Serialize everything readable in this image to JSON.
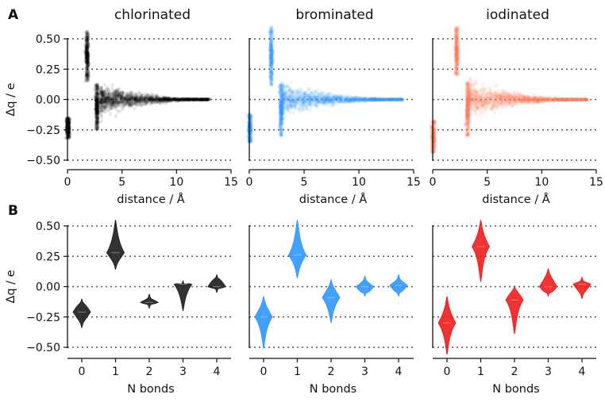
{
  "panel_labels": [
    "A",
    "B"
  ],
  "chart_data": [
    {
      "type": "scatter",
      "panel": "A",
      "title": "chlorinated",
      "xlabel": "distance / Å",
      "ylabel": "Δq / e",
      "xlim": [
        0,
        15
      ],
      "ylim": [
        -0.5,
        0.6
      ],
      "xticks": [
        "0",
        "5",
        "10",
        "15"
      ],
      "yticks": [
        "0.50",
        "0.25",
        "0.00",
        "−0.25",
        "−0.50"
      ],
      "color": "#000000",
      "clusters": [
        {
          "x": 0.05,
          "y_range": [
            -0.32,
            -0.15
          ]
        },
        {
          "x": 1.8,
          "y_range": [
            0.15,
            0.56
          ]
        },
        {
          "x": 2.7,
          "y_range": [
            -0.25,
            0.13
          ]
        },
        {
          "x_range": [
            3,
            13
          ],
          "envelope": [
            0.12,
            0.0
          ]
        }
      ]
    },
    {
      "type": "scatter",
      "panel": "A",
      "title": "brominated",
      "xlabel": "distance / Å",
      "ylabel": "",
      "xlim": [
        0,
        15
      ],
      "ylim": [
        -0.5,
        0.6
      ],
      "xticks": [
        "0",
        "5",
        "10",
        "15"
      ],
      "color": "#3399ff",
      "clusters": [
        {
          "x": 0.05,
          "y_range": [
            -0.35,
            -0.12
          ]
        },
        {
          "x": 2.0,
          "y_range": [
            0.12,
            0.6
          ]
        },
        {
          "x": 2.9,
          "y_range": [
            -0.3,
            0.13
          ]
        },
        {
          "x_range": [
            3,
            14
          ],
          "envelope": [
            0.13,
            0.0
          ]
        }
      ]
    },
    {
      "type": "scatter",
      "panel": "A",
      "title": "iodinated",
      "xlabel": "distance / Å",
      "ylabel": "",
      "xlim": [
        0,
        15
      ],
      "ylim": [
        -0.5,
        0.6
      ],
      "xticks": [
        "0",
        "5",
        "10",
        "15"
      ],
      "color": "#ff7a5c",
      "clusters": [
        {
          "x": 0.05,
          "y_range": [
            -0.44,
            -0.17
          ]
        },
        {
          "x": 2.2,
          "y_range": [
            0.2,
            0.6
          ]
        },
        {
          "x": 3.2,
          "y_range": [
            -0.3,
            0.14
          ]
        },
        {
          "x_range": [
            3.3,
            14.2
          ],
          "envelope": [
            0.14,
            0.0
          ]
        }
      ]
    },
    {
      "type": "violin",
      "panel": "B",
      "title": "",
      "xlabel": "N bonds",
      "ylabel": "Δq / e",
      "categories": [
        "0",
        "1",
        "2",
        "3",
        "4"
      ],
      "ylim": [
        -0.5,
        0.55
      ],
      "yticks": [
        "0.50",
        "0.25",
        "0.00",
        "−0.25",
        "−0.50"
      ],
      "color": "#222222",
      "series": [
        {
          "values": [
            -0.21,
            0.28,
            -0.13,
            0.02,
            0.0
          ],
          "min": [
            -0.34,
            0.14,
            -0.18,
            -0.2,
            -0.05
          ],
          "max": [
            -0.1,
            0.55,
            -0.06,
            0.05,
            0.1
          ]
        }
      ]
    },
    {
      "type": "violin",
      "panel": "B",
      "title": "",
      "xlabel": "N bonds",
      "ylabel": "",
      "categories": [
        "0",
        "1",
        "2",
        "3",
        "4"
      ],
      "ylim": [
        -0.5,
        0.55
      ],
      "color": "#3399ff",
      "series": [
        {
          "values": [
            -0.25,
            0.26,
            -0.09,
            0.0,
            0.01
          ],
          "min": [
            -0.51,
            0.07,
            -0.3,
            -0.08,
            -0.08
          ],
          "max": [
            -0.08,
            0.55,
            0.06,
            0.09,
            0.1
          ]
        }
      ]
    },
    {
      "type": "violin",
      "panel": "B",
      "title": "",
      "xlabel": "N bonds",
      "ylabel": "",
      "categories": [
        "0",
        "1",
        "2",
        "3",
        "4"
      ],
      "ylim": [
        -0.5,
        0.55
      ],
      "color": "#ee2222",
      "series": [
        {
          "values": [
            -0.3,
            0.33,
            -0.11,
            0.0,
            0.02
          ],
          "min": [
            -0.56,
            0.04,
            -0.39,
            -0.08,
            -0.1
          ],
          "max": [
            -0.08,
            0.55,
            0.01,
            0.15,
            0.08
          ]
        }
      ]
    }
  ]
}
